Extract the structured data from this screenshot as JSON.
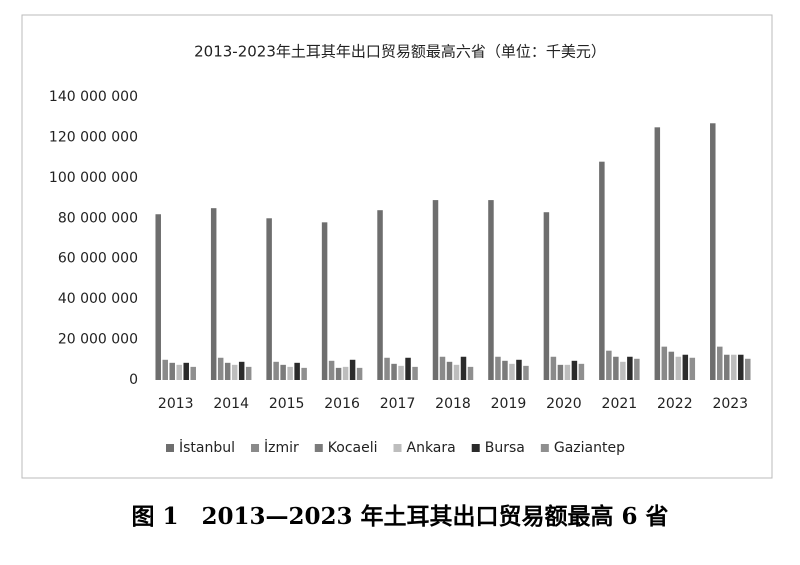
{
  "chart_data": {
    "type": "bar",
    "title": "2013-2023年土耳其年出口贸易额最高六省（单位：千美元）",
    "categories": [
      "2013",
      "2014",
      "2015",
      "2016",
      "2017",
      "2018",
      "2019",
      "2020",
      "2021",
      "2022",
      "2023"
    ],
    "series": [
      {
        "name": "İstanbul",
        "color": "#6e6e6e",
        "values": [
          82000000,
          85000000,
          80000000,
          78000000,
          84000000,
          89000000,
          89000000,
          83000000,
          108000000,
          125000000,
          127000000
        ]
      },
      {
        "name": "İzmir",
        "color": "#8a8a8a",
        "values": [
          10000000,
          11000000,
          9000000,
          9500000,
          11000000,
          11500000,
          11500000,
          11500000,
          14500000,
          16500000,
          16500000
        ]
      },
      {
        "name": "Kocaeli",
        "color": "#7b7b7b",
        "values": [
          8500000,
          8500000,
          7500000,
          6000000,
          8000000,
          9000000,
          9500000,
          7500000,
          11500000,
          14000000,
          12500000
        ]
      },
      {
        "name": "Ankara",
        "color": "#bdbdbd",
        "values": [
          7500000,
          7500000,
          6500000,
          6500000,
          7000000,
          7500000,
          8000000,
          7500000,
          9000000,
          11500000,
          12500000
        ]
      },
      {
        "name": "Bursa",
        "color": "#2b2b2b",
        "values": [
          8500000,
          9000000,
          8500000,
          10000000,
          11000000,
          11500000,
          10000000,
          9500000,
          11500000,
          12500000,
          12500000
        ]
      },
      {
        "name": "Gaziantep",
        "color": "#8f8f8f",
        "values": [
          6500000,
          6500000,
          6000000,
          6000000,
          6500000,
          6500000,
          7000000,
          8000000,
          10500000,
          11000000,
          10500000
        ]
      }
    ],
    "ylim": [
      0,
      140000000
    ],
    "yticks": [
      0,
      {
        "value": 20000000,
        "label": "20 000 000"
      },
      {
        "value": 40000000,
        "label": "40 000 000"
      },
      {
        "value": 60000000,
        "label": "60 000 000"
      },
      {
        "value": 80000000,
        "label": "80 000 000"
      },
      {
        "value": 100000000,
        "label": "100 000 000"
      },
      {
        "value": 120000000,
        "label": "120 000 000"
      },
      {
        "value": 140000000,
        "label": "140 000 000"
      }
    ],
    "grid": false,
    "legend": "bottom"
  },
  "caption": "图 1　2013—2023 年土耳其出口贸易额最高 6 省"
}
